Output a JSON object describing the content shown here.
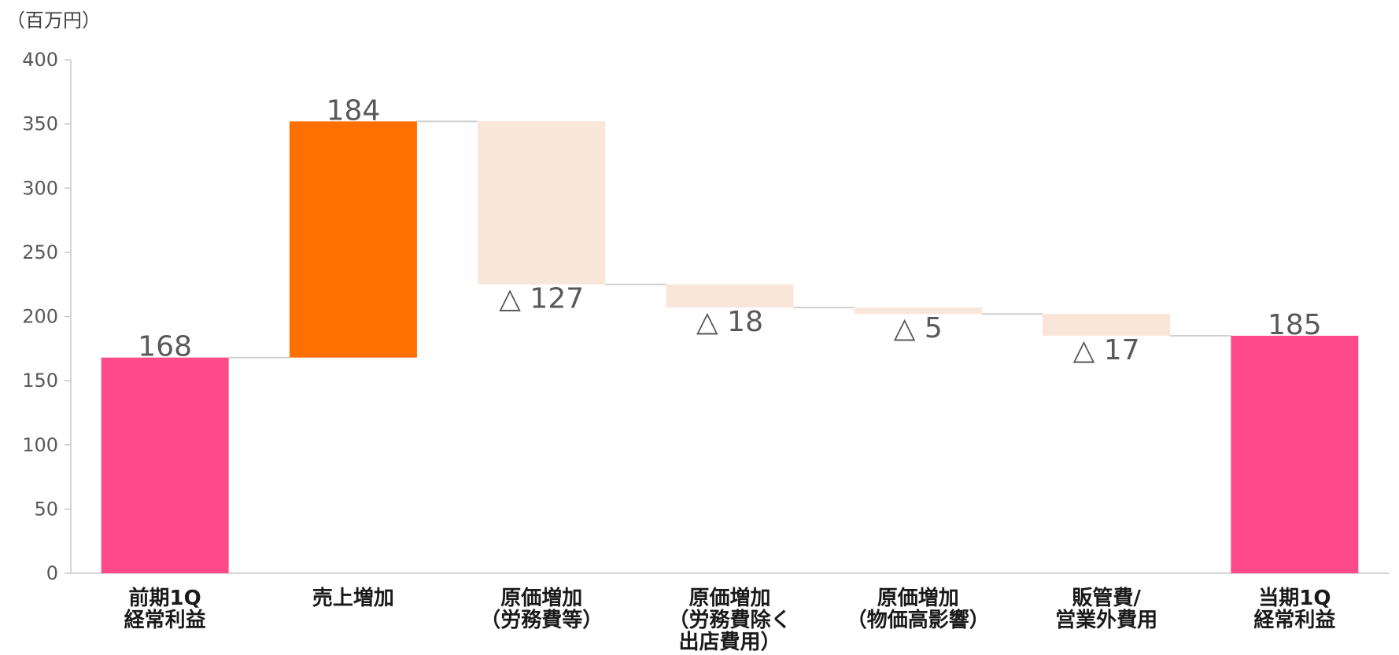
{
  "chart_data": {
    "type": "waterfall",
    "unit_label": "（百万円）",
    "y_ticks": [
      "0",
      "50",
      "100",
      "150",
      "200",
      "250",
      "300",
      "350",
      "400"
    ],
    "ylim": [
      0,
      400
    ],
    "grid": false,
    "categories": [
      [
        "前期1Q",
        "経常利益"
      ],
      [
        "売上増加"
      ],
      [
        "原価増加",
        "（労務費等）"
      ],
      [
        "原価増加",
        "（労務費除く",
        "出店費用）"
      ],
      [
        "原価増加",
        "（物価高影響）"
      ],
      [
        "販管費/",
        "営業外費用"
      ],
      [
        "当期1Q",
        "経常利益"
      ]
    ],
    "bars": [
      {
        "kind": "total",
        "start": 0,
        "end": 168,
        "label": "168",
        "color": "#FF4A8A"
      },
      {
        "kind": "increase",
        "start": 168,
        "end": 352,
        "label": "184",
        "color": "#FF7000"
      },
      {
        "kind": "decrease",
        "start": 352,
        "end": 225,
        "label": "△ 127",
        "color": "#FAE5D9"
      },
      {
        "kind": "decrease",
        "start": 225,
        "end": 207,
        "label": "△ 18",
        "color": "#FAE5D9"
      },
      {
        "kind": "decrease",
        "start": 207,
        "end": 202,
        "label": "△ 5",
        "color": "#FAE5D9"
      },
      {
        "kind": "decrease",
        "start": 202,
        "end": 185,
        "label": "△ 17",
        "color": "#FAE5D9"
      },
      {
        "kind": "total",
        "start": 0,
        "end": 185,
        "label": "185",
        "color": "#FF4A8A"
      }
    ],
    "axis_color": "#C8C8C8",
    "connector_color": "#D0D0D0"
  }
}
